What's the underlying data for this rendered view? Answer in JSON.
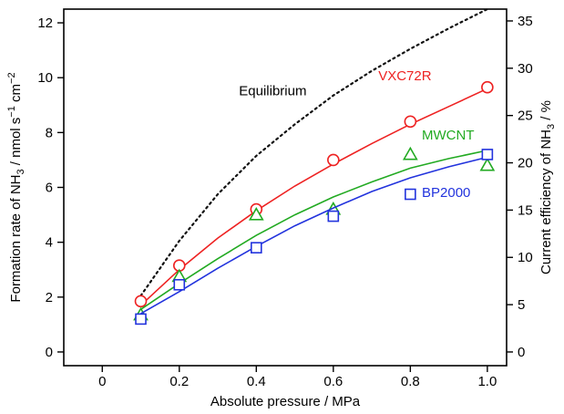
{
  "chart_data": {
    "type": "line",
    "xlabel": "Absolute pressure  /  MPa",
    "ylabel_left_parts": [
      "Formation rate of NH",
      "3",
      "  /  nmol s",
      "−1",
      " cm",
      "−2"
    ],
    "ylabel_right_parts": [
      "Current efficiency of NH",
      "3",
      "  /  %"
    ],
    "xlim": [
      -0.1,
      1.05
    ],
    "ylim_left": [
      -0.5,
      12.5
    ],
    "ylim_right": [
      -1.45,
      36.25
    ],
    "x_ticks": [
      0,
      0.2,
      0.4,
      0.6,
      0.8,
      1.0
    ],
    "x_tick_labels": [
      "0",
      "0.2",
      "0.4",
      "0.6",
      "0.8",
      "1.0"
    ],
    "y_ticks_left": [
      0,
      2,
      4,
      6,
      8,
      10,
      12
    ],
    "y_tick_labels_left": [
      "0",
      "2",
      "4",
      "6",
      "8",
      "10",
      "12"
    ],
    "y_ticks_right": [
      0,
      5,
      10,
      15,
      20,
      25,
      30,
      35
    ],
    "y_tick_labels_right": [
      "0",
      "5",
      "10",
      "15",
      "20",
      "25",
      "30",
      "35"
    ],
    "series": [
      {
        "name": "VXC72R",
        "marker": "circle",
        "color": "#ee2222",
        "x": [
          0.1,
          0.2,
          0.4,
          0.6,
          0.8,
          1.0
        ],
        "y": [
          1.85,
          3.15,
          5.2,
          7.0,
          8.4,
          9.65
        ],
        "fit_x": [
          0.1,
          0.2,
          0.3,
          0.4,
          0.5,
          0.6,
          0.7,
          0.8,
          0.9,
          1.0
        ],
        "fit_y": [
          1.7,
          3.0,
          4.15,
          5.15,
          6.05,
          6.85,
          7.6,
          8.3,
          8.95,
          9.6
        ]
      },
      {
        "name": "MWCNT",
        "marker": "triangle",
        "color": "#22aa22",
        "x": [
          0.1,
          0.2,
          0.4,
          0.6,
          0.8,
          1.0
        ],
        "y": [
          1.35,
          2.75,
          5.0,
          5.2,
          7.2,
          6.8
        ],
        "fit_x": [
          0.1,
          0.2,
          0.3,
          0.4,
          0.5,
          0.6,
          0.7,
          0.8,
          0.9,
          1.0
        ],
        "fit_y": [
          1.55,
          2.5,
          3.4,
          4.25,
          5.0,
          5.65,
          6.2,
          6.7,
          7.05,
          7.35
        ]
      },
      {
        "name": "BP2000",
        "marker": "square",
        "color": "#2233dd",
        "x": [
          0.1,
          0.2,
          0.4,
          0.6,
          0.8,
          1.0
        ],
        "y": [
          1.2,
          2.45,
          3.8,
          4.95,
          5.75,
          7.2
        ],
        "fit_x": [
          0.1,
          0.2,
          0.3,
          0.4,
          0.5,
          0.6,
          0.7,
          0.8,
          0.9,
          1.0
        ],
        "fit_y": [
          1.4,
          2.2,
          3.05,
          3.85,
          4.6,
          5.25,
          5.85,
          6.35,
          6.75,
          7.1
        ]
      }
    ],
    "equilibrium": {
      "label": "Equilibrium",
      "color": "#111111",
      "x": [
        0.1,
        0.2,
        0.3,
        0.4,
        0.5,
        0.6,
        0.7,
        0.8,
        0.9,
        1.0
      ],
      "y": [
        2.05,
        4.05,
        5.75,
        7.15,
        8.3,
        9.35,
        10.25,
        11.05,
        11.8,
        12.5
      ]
    },
    "grid": false,
    "legend": "inline labels next to curves"
  }
}
